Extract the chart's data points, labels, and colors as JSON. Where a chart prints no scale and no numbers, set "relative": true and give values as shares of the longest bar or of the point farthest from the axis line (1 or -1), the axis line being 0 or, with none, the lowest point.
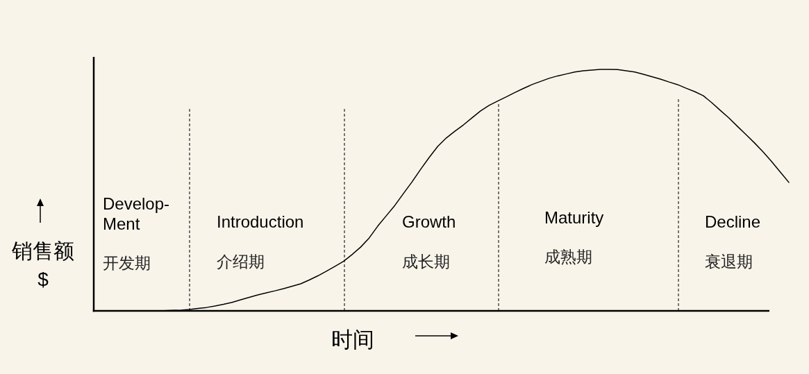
{
  "chart_data": {
    "type": "line",
    "relative": true,
    "grid": "x",
    "xlabel": "时间",
    "ylabel": "销售额\n$",
    "categories": [
      null,
      null,
      null,
      null,
      null,
      null,
      null,
      null,
      null,
      null,
      null,
      null,
      null,
      null,
      null,
      null,
      null,
      null,
      null,
      null,
      null,
      null,
      null,
      null,
      null,
      null,
      null,
      null,
      null,
      null,
      null,
      null,
      null,
      null,
      null,
      null,
      null,
      null,
      null,
      null,
      null,
      null,
      null,
      null,
      null,
      null,
      null,
      null,
      null,
      null,
      null,
      null,
      null,
      null,
      null,
      null,
      null,
      null,
      null,
      null,
      null,
      null,
      null,
      null,
      null,
      null,
      null,
      null,
      null,
      null,
      null,
      null,
      null,
      null,
      null,
      null
    ],
    "series": [
      {
        "color": "#000000",
        "values": [
          0,
          0.001,
          0.001,
          0.002,
          0.003,
          0.006,
          0.01,
          0.014,
          0.02,
          0.027,
          0.035,
          0.046,
          0.056,
          0.066,
          0.075,
          0.083,
          0.092,
          0.102,
          0.112,
          0.128,
          0.145,
          0.164,
          0.184,
          0.205,
          0.233,
          0.264,
          0.302,
          0.351,
          0.394,
          0.437,
          0.486,
          0.534,
          0.586,
          0.635,
          0.681,
          0.716,
          0.744,
          0.77,
          0.799,
          0.828,
          0.851,
          0.869,
          0.886,
          0.904,
          0.921,
          0.937,
          0.95,
          0.963,
          0.973,
          0.981,
          0.989,
          0.994,
          0.997,
          1,
          1,
          0.999,
          0.994,
          0.989,
          0.98,
          0.97,
          0.96,
          0.948,
          0.937,
          0.922,
          0.908,
          0.891,
          0.862,
          0.83,
          0.799,
          0.764,
          0.73,
          0.695,
          0.658,
          0.618,
          0.575,
          0.532
        ]
      }
    ],
    "annotations": [
      "Develop-\nMent",
      "开发期",
      "Introduction",
      "介绍期",
      "Growth",
      "成长期",
      "Maturity",
      "成熟期",
      "Decline",
      "衰退期"
    ]
  }
}
